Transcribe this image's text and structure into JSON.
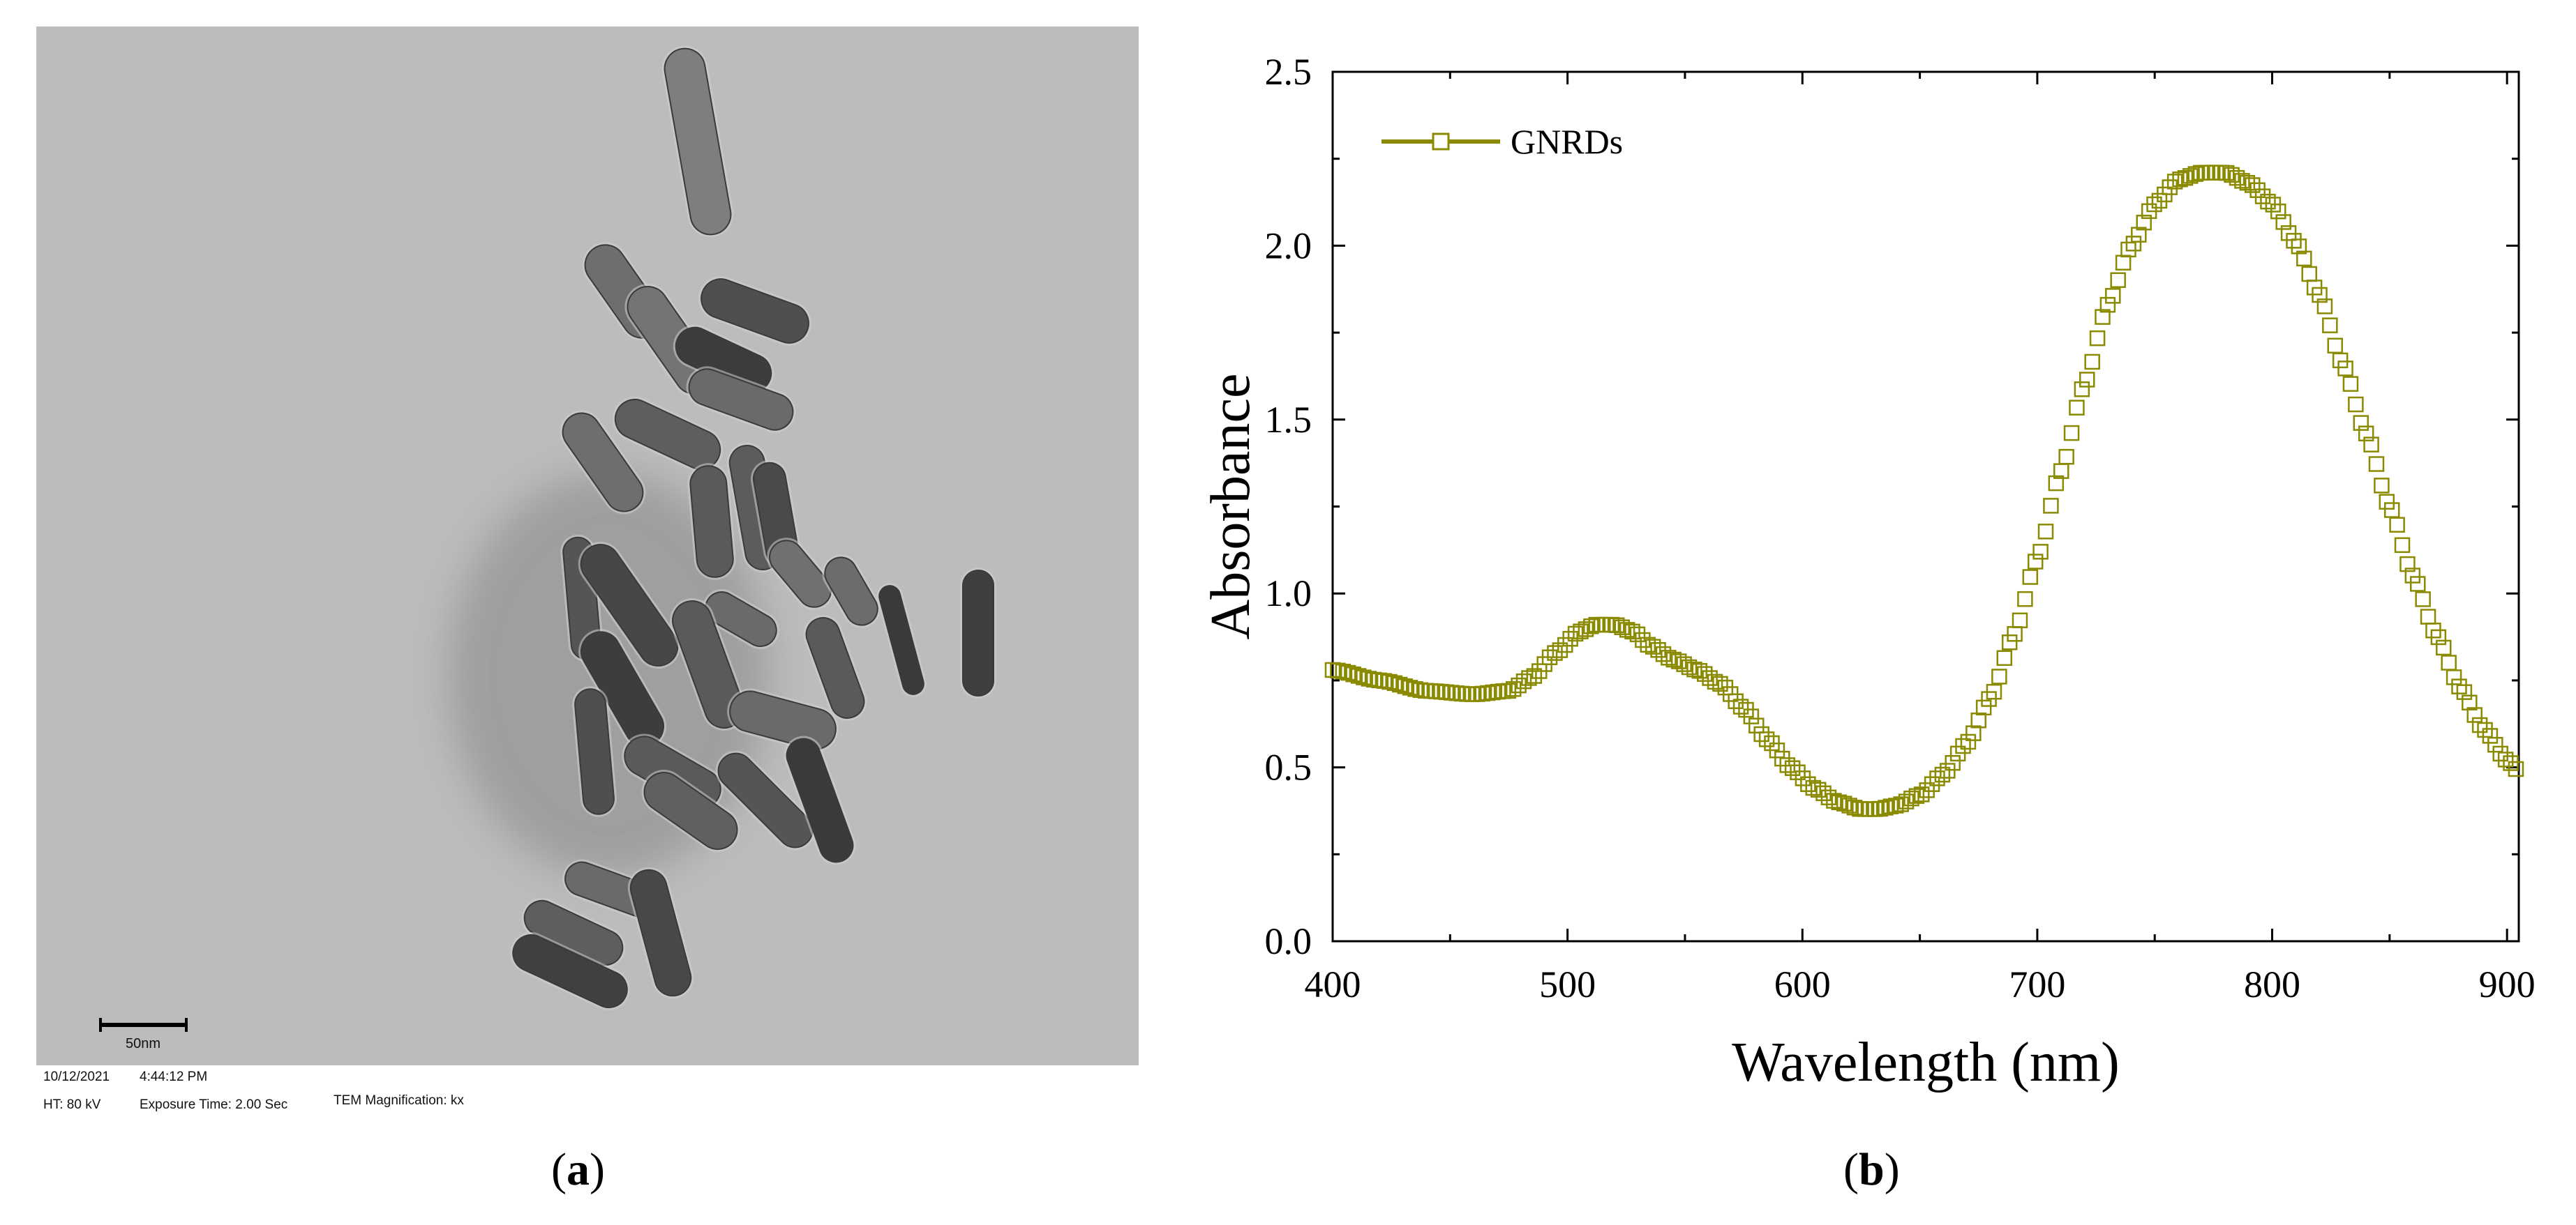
{
  "panel_a": {
    "scale_bar_label": "50nm",
    "info": {
      "date": "10/12/2021",
      "time": "4:44:12 PM",
      "ht": "HT: 80 kV",
      "exposure": "Exposure Time: 2.00 Sec",
      "magnification": "TEM Magnification: kx"
    },
    "caption_open": "(",
    "caption_letter": "a",
    "caption_close": ")"
  },
  "panel_b": {
    "caption_open": "(",
    "caption_letter": "b",
    "caption_close": ")"
  },
  "chart_data": {
    "type": "scatter",
    "title": "",
    "xlabel": "Wavelength (nm)",
    "ylabel": "Absorbance",
    "xlim": [
      400,
      905
    ],
    "ylim": [
      0.0,
      2.5
    ],
    "xticks": [
      400,
      500,
      600,
      700,
      800,
      900
    ],
    "yticks": [
      0.0,
      0.5,
      1.0,
      1.5,
      2.0,
      2.5
    ],
    "xtick_labels": [
      "400",
      "500",
      "600",
      "700",
      "800",
      "900"
    ],
    "ytick_labels": [
      "0.0",
      "0.5",
      "1.0",
      "1.5",
      "2.0",
      "2.5"
    ],
    "grid": false,
    "legend_position": "top-left",
    "series_color": "#8a8a00",
    "marker": "open-square",
    "series": [
      {
        "name": "GNRDs",
        "x": [
          400,
          420,
          440,
          460,
          475,
          485,
          495,
          505,
          512,
          520,
          528,
          535,
          545,
          555,
          565,
          575,
          585,
          595,
          605,
          615,
          625,
          632,
          640,
          650,
          660,
          670,
          680,
          690,
          700,
          710,
          720,
          730,
          740,
          750,
          760,
          770,
          780,
          790,
          800,
          810,
          820,
          830,
          840,
          850,
          860,
          870,
          880,
          890,
          900,
          905
        ],
        "y": [
          0.78,
          0.75,
          0.72,
          0.71,
          0.72,
          0.76,
          0.83,
          0.89,
          0.91,
          0.91,
          0.89,
          0.85,
          0.81,
          0.78,
          0.74,
          0.67,
          0.58,
          0.5,
          0.44,
          0.4,
          0.38,
          0.38,
          0.39,
          0.42,
          0.48,
          0.57,
          0.7,
          0.88,
          1.1,
          1.35,
          1.6,
          1.83,
          2.0,
          2.12,
          2.19,
          2.21,
          2.21,
          2.18,
          2.12,
          2.01,
          1.86,
          1.66,
          1.46,
          1.25,
          1.05,
          0.88,
          0.73,
          0.61,
          0.52,
          0.49
        ]
      }
    ]
  }
}
